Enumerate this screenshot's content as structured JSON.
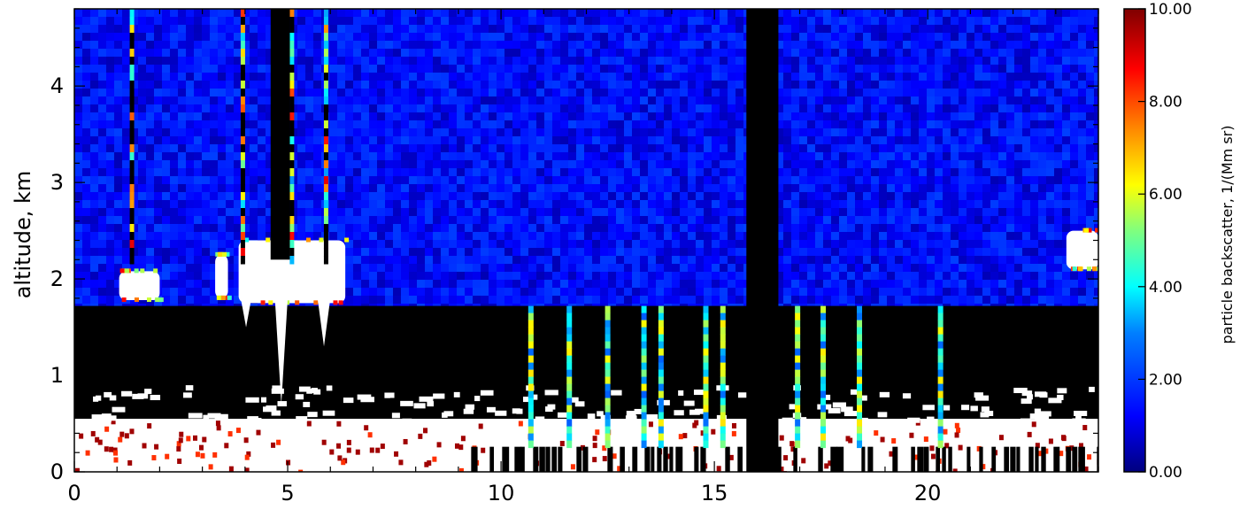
{
  "chart_data": {
    "type": "heatmap",
    "title": "",
    "xlabel": "",
    "ylabel": "altitude, km",
    "xlim": [
      0,
      24
    ],
    "ylim": [
      0,
      4.8
    ],
    "x_ticks": [
      0,
      5,
      10,
      15,
      20
    ],
    "x_tick_labels": [
      "0",
      "5",
      "10",
      "15",
      "20"
    ],
    "y_ticks": [
      0,
      1,
      2,
      3,
      4
    ],
    "y_tick_labels": [
      "0",
      "1",
      "2",
      "3",
      "4"
    ],
    "colorbar": {
      "label": "particle backscatter, 1/(Mm sr)",
      "range": [
        0,
        10
      ],
      "ticks": [
        0,
        2,
        4,
        6,
        8,
        10
      ],
      "tick_labels": [
        "0.00",
        "2.00",
        "4.00",
        "6.00",
        "8.00",
        "10.00"
      ],
      "colormap": [
        "#00007f",
        "#0000ff",
        "#007fff",
        "#00ffff",
        "#7fff7f",
        "#ffff00",
        "#ff7f00",
        "#ff0000",
        "#7f0000"
      ]
    },
    "background_value_above_boundary_layer": 1.3,
    "boundary_layer_top_km": 1.72,
    "no_data_gaps": [
      {
        "x": [
          4.6,
          5.05
        ],
        "y": [
          2.2,
          4.8
        ]
      },
      {
        "x": [
          15.75,
          16.5
        ],
        "y": [
          0,
          4.8
        ]
      }
    ],
    "clouds": [
      {
        "x": [
          1.05,
          2.0
        ],
        "y": [
          1.78,
          2.08
        ]
      },
      {
        "x": [
          3.3,
          3.6
        ],
        "y": [
          1.8,
          2.25
        ]
      },
      {
        "x": [
          3.85,
          6.35
        ],
        "y": [
          1.75,
          2.4
        ]
      },
      {
        "x": [
          23.25,
          24.0
        ],
        "y": [
          2.1,
          2.5
        ]
      }
    ],
    "surface_layer_km": [
      0,
      0.55
    ],
    "vertical_profile_columns_x": [
      10.7,
      11.6,
      12.5,
      13.35,
      13.75,
      14.8,
      15.2,
      16.95,
      17.55,
      18.4,
      20.3
    ]
  }
}
